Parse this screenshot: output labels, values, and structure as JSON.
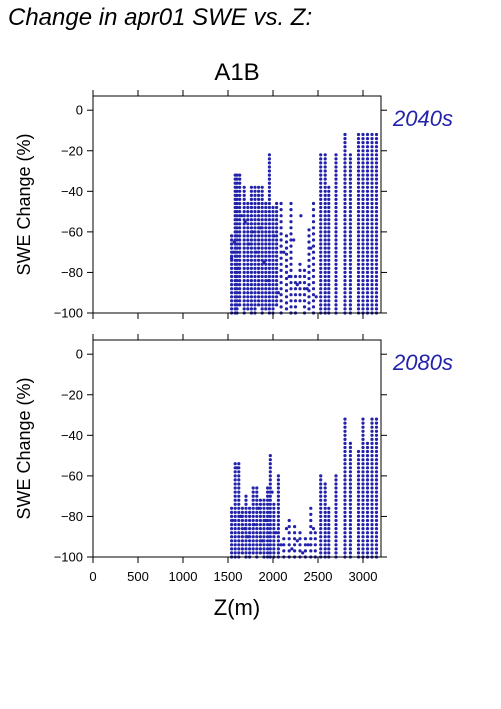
{
  "figure_title": "Change in apr01 SWE vs. Z:",
  "colors": {
    "points": "#2222aa",
    "period_label": "#2222aa",
    "axes": "#000000"
  },
  "chart_data": [
    {
      "type": "scatter",
      "scenario": "A1B",
      "period": "2040s",
      "ylabel": "SWE Change (%)",
      "xlabel": "",
      "xlim": [
        0,
        3200
      ],
      "ylim": [
        -100,
        7
      ],
      "yticks": [
        0,
        -20,
        -40,
        -60,
        -80,
        -100
      ],
      "xticks": [
        0,
        500,
        1000,
        1500,
        2000,
        2500,
        3000
      ],
      "x_tick_labels_shown": false,
      "columns": [
        {
          "x": 1540,
          "y_min": -100,
          "y_max": -62,
          "step": 2
        },
        {
          "x": 1580,
          "y_min": -100,
          "y_max": -31,
          "step": 2
        },
        {
          "x": 1600,
          "y_min": -100,
          "y_max": -31,
          "step": 2
        },
        {
          "x": 1630,
          "y_min": -96,
          "y_max": -31,
          "step": 2
        },
        {
          "x": 1680,
          "y_min": -100,
          "y_max": -37,
          "step": 2
        },
        {
          "x": 1720,
          "y_min": -98,
          "y_max": -45,
          "step": 2
        },
        {
          "x": 1760,
          "y_min": -100,
          "y_max": -37,
          "step": 2
        },
        {
          "x": 1800,
          "y_min": -100,
          "y_max": -37,
          "step": 2
        },
        {
          "x": 1840,
          "y_min": -96,
          "y_max": -37,
          "step": 2
        },
        {
          "x": 1880,
          "y_min": -100,
          "y_max": -37,
          "step": 2
        },
        {
          "x": 1920,
          "y_min": -98,
          "y_max": -45,
          "step": 2
        },
        {
          "x": 1960,
          "y_min": -100,
          "y_max": -21,
          "step": 2
        },
        {
          "x": 2000,
          "y_min": -100,
          "y_max": -48,
          "step": 2
        },
        {
          "x": 2040,
          "y_min": -96,
          "y_max": -46,
          "step": 2
        },
        {
          "x": 2090,
          "y_min": -100,
          "y_max": -46,
          "step": 3
        },
        {
          "x": 2150,
          "y_min": -98,
          "y_max": -62,
          "step": 3
        },
        {
          "x": 2200,
          "y_min": -100,
          "y_max": -46,
          "step": 3
        },
        {
          "x": 2250,
          "y_min": -100,
          "y_max": -80,
          "step": 3
        },
        {
          "x": 2300,
          "y_min": -94,
          "y_max": -75,
          "step": 3
        },
        {
          "x": 2350,
          "y_min": -100,
          "y_max": -77,
          "step": 3
        },
        {
          "x": 2400,
          "y_min": -98,
          "y_max": -57,
          "step": 3
        },
        {
          "x": 2450,
          "y_min": -100,
          "y_max": -46,
          "step": 3
        },
        {
          "x": 2530,
          "y_min": -100,
          "y_max": -21,
          "step": 2
        },
        {
          "x": 2580,
          "y_min": -100,
          "y_max": -21,
          "step": 2
        },
        {
          "x": 2620,
          "y_min": -100,
          "y_max": -38,
          "step": 2
        },
        {
          "x": 2700,
          "y_min": -100,
          "y_max": -21,
          "step": 2
        },
        {
          "x": 2800,
          "y_min": -100,
          "y_max": -11,
          "step": 2
        },
        {
          "x": 2860,
          "y_min": -100,
          "y_max": -21,
          "step": 2
        },
        {
          "x": 2950,
          "y_min": -100,
          "y_max": -11,
          "step": 2
        },
        {
          "x": 3000,
          "y_min": -100,
          "y_max": -11,
          "step": 2
        },
        {
          "x": 3050,
          "y_min": -100,
          "y_max": -11,
          "step": 2
        },
        {
          "x": 3100,
          "y_min": -100,
          "y_max": -11,
          "step": 2
        },
        {
          "x": 3150,
          "y_min": -100,
          "y_max": -11,
          "step": 2
        }
      ],
      "points": [
        {
          "x": 1540,
          "y": -73
        },
        {
          "x": 1560,
          "y": -70
        },
        {
          "x": 1570,
          "y": -65
        },
        {
          "x": 1590,
          "y": -82
        },
        {
          "x": 1610,
          "y": -78
        },
        {
          "x": 1650,
          "y": -52
        },
        {
          "x": 1690,
          "y": -55
        },
        {
          "x": 1730,
          "y": -66
        },
        {
          "x": 1770,
          "y": -60
        },
        {
          "x": 1810,
          "y": -70
        },
        {
          "x": 1860,
          "y": -58
        },
        {
          "x": 1900,
          "y": -75
        },
        {
          "x": 1950,
          "y": -84
        },
        {
          "x": 2010,
          "y": -62
        },
        {
          "x": 2060,
          "y": -90
        },
        {
          "x": 2120,
          "y": -70
        },
        {
          "x": 2180,
          "y": -82
        },
        {
          "x": 2230,
          "y": -64
        },
        {
          "x": 2270,
          "y": -86
        },
        {
          "x": 2310,
          "y": -52
        },
        {
          "x": 2380,
          "y": -88
        },
        {
          "x": 2420,
          "y": -68
        },
        {
          "x": 2480,
          "y": -92
        }
      ]
    },
    {
      "type": "scatter",
      "scenario": "A1B",
      "period": "2080s",
      "ylabel": "SWE Change (%)",
      "xlabel": "Z(m)",
      "xlim": [
        0,
        3200
      ],
      "ylim": [
        -100,
        7
      ],
      "yticks": [
        0,
        -20,
        -40,
        -60,
        -80,
        -100
      ],
      "xticks": [
        0,
        500,
        1000,
        1500,
        2000,
        2500,
        3000
      ],
      "x_tick_labels_shown": true,
      "columns": [
        {
          "x": 1540,
          "y_min": -100,
          "y_max": -76,
          "step": 2
        },
        {
          "x": 1580,
          "y_min": -100,
          "y_max": -54,
          "step": 2
        },
        {
          "x": 1620,
          "y_min": -100,
          "y_max": -54,
          "step": 2
        },
        {
          "x": 1660,
          "y_min": -98,
          "y_max": -76,
          "step": 2
        },
        {
          "x": 1700,
          "y_min": -100,
          "y_max": -70,
          "step": 2
        },
        {
          "x": 1740,
          "y_min": -100,
          "y_max": -76,
          "step": 2
        },
        {
          "x": 1780,
          "y_min": -98,
          "y_max": -65,
          "step": 2
        },
        {
          "x": 1820,
          "y_min": -100,
          "y_max": -65,
          "step": 2
        },
        {
          "x": 1860,
          "y_min": -98,
          "y_max": -72,
          "step": 2
        },
        {
          "x": 1900,
          "y_min": -100,
          "y_max": -72,
          "step": 2
        },
        {
          "x": 1940,
          "y_min": -100,
          "y_max": -65,
          "step": 2
        },
        {
          "x": 1970,
          "y_min": -100,
          "y_max": -49,
          "step": 2
        },
        {
          "x": 2010,
          "y_min": -100,
          "y_max": -74,
          "step": 2
        },
        {
          "x": 2060,
          "y_min": -100,
          "y_max": -60,
          "step": 2
        },
        {
          "x": 2120,
          "y_min": -100,
          "y_max": -90,
          "step": 3
        },
        {
          "x": 2180,
          "y_min": -100,
          "y_max": -80,
          "step": 3
        },
        {
          "x": 2240,
          "y_min": -100,
          "y_max": -84,
          "step": 3
        },
        {
          "x": 2300,
          "y_min": -100,
          "y_max": -86,
          "step": 3
        },
        {
          "x": 2360,
          "y_min": -100,
          "y_max": -90,
          "step": 3
        },
        {
          "x": 2420,
          "y_min": -100,
          "y_max": -76,
          "step": 3
        },
        {
          "x": 2470,
          "y_min": -100,
          "y_max": -88,
          "step": 3
        },
        {
          "x": 2530,
          "y_min": -100,
          "y_max": -60,
          "step": 2
        },
        {
          "x": 2580,
          "y_min": -100,
          "y_max": -64,
          "step": 2
        },
        {
          "x": 2620,
          "y_min": -100,
          "y_max": -76,
          "step": 2
        },
        {
          "x": 2700,
          "y_min": -100,
          "y_max": -60,
          "step": 2
        },
        {
          "x": 2800,
          "y_min": -100,
          "y_max": -31,
          "step": 2
        },
        {
          "x": 2860,
          "y_min": -100,
          "y_max": -43,
          "step": 2
        },
        {
          "x": 2950,
          "y_min": -100,
          "y_max": -48,
          "step": 2
        },
        {
          "x": 3000,
          "y_min": -100,
          "y_max": -31,
          "step": 2
        },
        {
          "x": 3050,
          "y_min": -100,
          "y_max": -43,
          "step": 2
        },
        {
          "x": 3100,
          "y_min": -100,
          "y_max": -31,
          "step": 2
        },
        {
          "x": 3150,
          "y_min": -100,
          "y_max": -31,
          "step": 2
        }
      ],
      "points": [
        {
          "x": 1550,
          "y": -82
        },
        {
          "x": 1600,
          "y": -56
        },
        {
          "x": 1640,
          "y": -80
        },
        {
          "x": 1690,
          "y": -86
        },
        {
          "x": 1720,
          "y": -90
        },
        {
          "x": 1790,
          "y": -84
        },
        {
          "x": 1840,
          "y": -76
        },
        {
          "x": 1880,
          "y": -92
        },
        {
          "x": 1920,
          "y": -82
        },
        {
          "x": 1990,
          "y": -68
        },
        {
          "x": 2030,
          "y": -88
        },
        {
          "x": 2090,
          "y": -94
        },
        {
          "x": 2150,
          "y": -86
        },
        {
          "x": 2210,
          "y": -96
        },
        {
          "x": 2270,
          "y": -92
        },
        {
          "x": 2330,
          "y": -98
        },
        {
          "x": 2390,
          "y": -94
        },
        {
          "x": 2450,
          "y": -86
        }
      ]
    }
  ]
}
